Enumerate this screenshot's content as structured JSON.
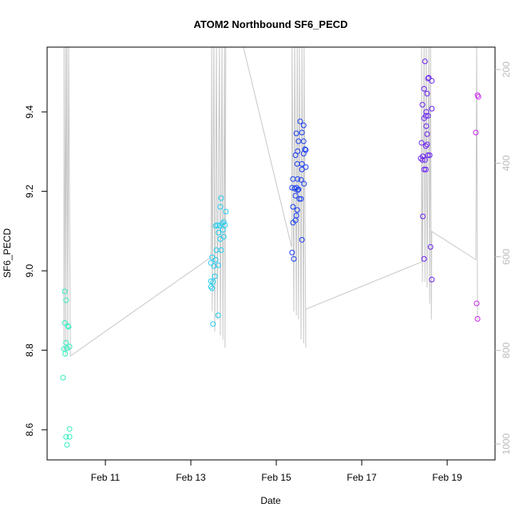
{
  "chart_data": {
    "type": "scatter",
    "title": "ATOM2 Northbound SF6_PECD",
    "x_label": "Date",
    "y_label": "SF6_PECD",
    "xlim": [
      9.636,
      20.12
    ],
    "xticks": [
      {
        "value": 11,
        "label": "Feb 11"
      },
      {
        "value": 13,
        "label": "Feb 13"
      },
      {
        "value": 15,
        "label": "Feb 15"
      },
      {
        "value": 17,
        "label": "Feb 17"
      },
      {
        "value": 19,
        "label": "Feb 19"
      }
    ],
    "ylim": [
      8.524,
      9.563
    ],
    "yticks": [
      8.6,
      8.8,
      {
        "value": 9,
        "label": "9.0"
      },
      9.2,
      9.4
    ],
    "y2lim": [
      1034,
      152
    ],
    "y2ticks": [
      200,
      400,
      600,
      800,
      1000
    ],
    "series": [
      {
        "color": "#33f0c0",
        "x": [
          10.05,
          10.08,
          10.05,
          10.12,
          10.14,
          10.08,
          10.03,
          10.1,
          10.16,
          10.06,
          10.01,
          10.16,
          10.08,
          10.16,
          10.1
        ],
        "values": [
          8.948,
          8.926,
          8.869,
          8.861,
          8.859,
          8.819,
          8.803,
          8.805,
          8.809,
          8.791,
          8.731,
          8.602,
          8.582,
          8.582,
          8.562
        ]
      },
      {
        "color": "#22ccee",
        "x": [
          13.71,
          13.69,
          13.82,
          13.62,
          13.73,
          13.77,
          13.67,
          13.58,
          13.8,
          13.75,
          13.65,
          13.77,
          13.69,
          13.6,
          13.71,
          13.5,
          13.58,
          13.47,
          13.54,
          13.64,
          13.47,
          13.56,
          13.52,
          13.47,
          13.5,
          13.64,
          13.52
        ],
        "values": [
          9.183,
          9.161,
          9.149,
          9.115,
          9.119,
          9.123,
          9.113,
          9.113,
          9.115,
          9.103,
          9.096,
          9.086,
          9.08,
          9.052,
          9.052,
          9.034,
          9.028,
          9.02,
          9.012,
          9.014,
          8.974,
          8.986,
          8.972,
          8.96,
          8.956,
          8.888,
          8.866
        ]
      },
      {
        "color": "#1a3ef0",
        "x": [
          15.56,
          15.64,
          15.47,
          15.6,
          15.52,
          15.64,
          15.69,
          15.67,
          15.5,
          15.64,
          15.45,
          15.49,
          15.6,
          15.69,
          15.6,
          15.5,
          15.39,
          15.58,
          15.65,
          15.43,
          15.47,
          15.37,
          15.52,
          15.5,
          15.45,
          15.54,
          15.58,
          15.39,
          15.49,
          15.47,
          15.45,
          15.39,
          15.6,
          15.37,
          15.41
        ],
        "values": [
          9.376,
          9.366,
          9.346,
          9.348,
          9.326,
          9.326,
          9.304,
          9.306,
          9.301,
          9.295,
          9.291,
          9.269,
          9.269,
          9.261,
          9.255,
          9.231,
          9.231,
          9.229,
          9.219,
          9.207,
          9.209,
          9.209,
          9.205,
          9.203,
          9.189,
          9.181,
          9.181,
          9.161,
          9.153,
          9.139,
          9.127,
          9.121,
          9.078,
          9.046,
          9.03
        ]
      },
      {
        "color": "#6a22f0",
        "x": [
          18.48,
          18.57,
          18.55,
          18.64,
          18.46,
          18.53,
          18.42,
          18.51,
          18.64,
          18.5,
          18.46,
          18.55,
          18.51,
          18.53,
          18.53,
          18.4,
          18.5,
          18.43,
          18.38,
          18.48,
          18.55,
          18.59,
          18.42,
          18.46,
          18.5,
          18.61,
          18.43,
          18.46,
          18.64
        ],
        "values": [
          9.527,
          9.486,
          9.484,
          9.478,
          9.458,
          9.446,
          9.418,
          9.4,
          9.408,
          9.39,
          9.384,
          9.39,
          9.364,
          9.344,
          9.318,
          9.322,
          9.314,
          9.288,
          9.283,
          9.279,
          9.291,
          9.291,
          9.279,
          9.255,
          9.255,
          9.06,
          9.137,
          9.03,
          8.978
        ]
      },
      {
        "color": "#cc22ee",
        "x": [
          19.71,
          19.73,
          19.67,
          19.69,
          19.71
        ],
        "values": [
          9.442,
          9.438,
          9.348,
          8.918,
          8.879
        ]
      },
      {
        "type": "line",
        "axis": "y2",
        "color": "#c8c8c8",
        "x": [
          10.03,
          10.03,
          10.07,
          10.07,
          10.1,
          10.12,
          10.14,
          10.18,
          13.47,
          13.49,
          13.5,
          13.54,
          13.56,
          13.6,
          13.62,
          13.67,
          13.69,
          13.73,
          13.75,
          13.79,
          13.8,
          13.82,
          14.23,
          15.36,
          15.37,
          15.41,
          15.43,
          15.47,
          15.49,
          15.52,
          15.54,
          15.58,
          15.6,
          15.64,
          15.65,
          15.69,
          15.69,
          18.4,
          18.4,
          18.42,
          18.46,
          18.48,
          18.51,
          18.53,
          18.57,
          18.59,
          18.61,
          18.63,
          18.64,
          19.67,
          19.69,
          19.71
        ],
        "values": [
          140,
          802,
          140,
          811,
          140,
          802,
          140,
          812,
          601,
          140,
          717,
          140,
          760,
          140,
          734,
          140,
          768,
          140,
          777,
          140,
          794,
          120,
          152,
          580,
          140,
          717,
          140,
          725,
          140,
          734,
          140,
          777,
          140,
          785,
          140,
          794,
          712,
          611,
          140,
          654,
          140,
          654,
          140,
          666,
          140,
          700,
          140,
          734,
          546,
          606,
          140,
          734
        ]
      }
    ]
  }
}
